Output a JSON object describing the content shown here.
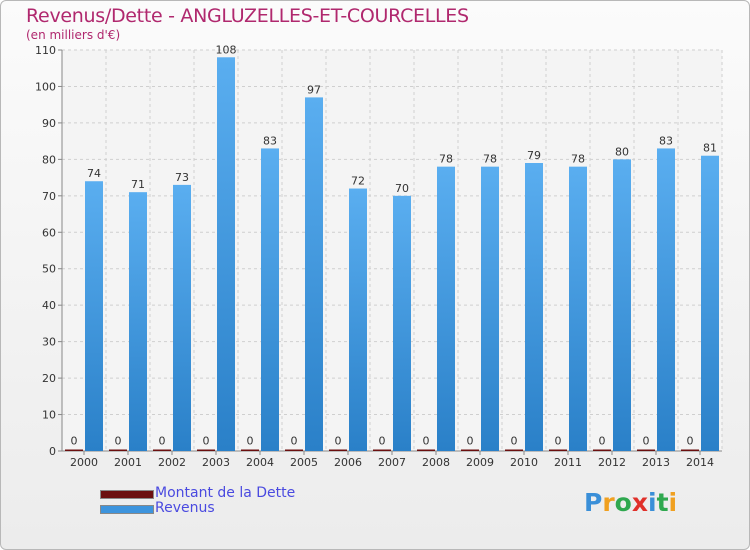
{
  "title": "Revenus/Dette - ANGLUZELLES-ET-COURCELLES",
  "subtitle": "(en milliers d'€)",
  "chart_data": {
    "type": "bar",
    "categories": [
      "2000",
      "2001",
      "2002",
      "2003",
      "2004",
      "2005",
      "2006",
      "2007",
      "2008",
      "2009",
      "2010",
      "2011",
      "2012",
      "2013",
      "2014"
    ],
    "series": [
      {
        "name": "Montant de la Dette",
        "values": [
          0,
          0,
          0,
          0,
          0,
          0,
          0,
          0,
          0,
          0,
          0,
          0,
          0,
          0,
          0
        ],
        "color": "#6b0f0f"
      },
      {
        "name": "Revenus",
        "values": [
          74,
          71,
          73,
          108,
          83,
          97,
          72,
          70,
          78,
          78,
          79,
          78,
          80,
          83,
          81
        ],
        "color": "#3d94dd"
      }
    ],
    "ylim": [
      0,
      110
    ],
    "yticks": [
      0,
      10,
      20,
      30,
      40,
      50,
      60,
      70,
      80,
      90,
      100,
      110
    ],
    "grid": true,
    "legend_position": "bottom-left"
  },
  "legend": {
    "items": [
      {
        "label": "Montant de la Dette",
        "color": "#6b0f0f"
      },
      {
        "label": "Revenus",
        "color": "#3d94dd"
      }
    ]
  },
  "logo": {
    "letters": [
      "P",
      "r",
      "o",
      "x",
      "i",
      "t",
      "i"
    ],
    "colors": [
      "#3a8fd8",
      "#f0a020",
      "#2fa84f",
      "#e0302a",
      "#3a8fd8",
      "#2fa84f",
      "#f0a020"
    ]
  }
}
